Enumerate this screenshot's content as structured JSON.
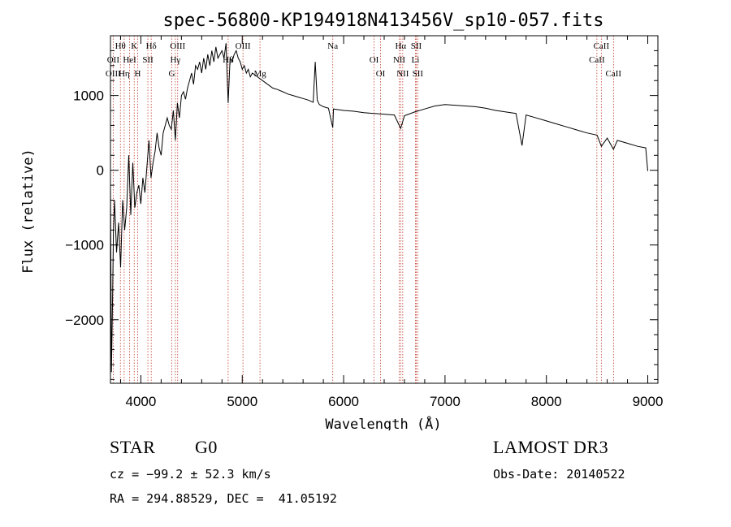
{
  "chart_data": {
    "type": "line",
    "title": "spec-56800-KP194918N413456V_sp10-057.fits",
    "xlabel": "Wavelength (Å)",
    "ylabel": "Flux (relative)",
    "xlim": [
      3700,
      9100
    ],
    "ylim": [
      -2850,
      1800
    ],
    "xticks": [
      4000,
      5000,
      6000,
      7000,
      8000,
      9000
    ],
    "xtick_labels": [
      "4000",
      "5000",
      "6000",
      "7000",
      "8000",
      "9000"
    ],
    "yticks": [
      -2000,
      -1000,
      0,
      1000
    ],
    "ytick_labels": [
      "−2000",
      "−1000",
      "0",
      "1000"
    ],
    "series": [
      {
        "name": "spectrum",
        "color": "#000000",
        "x": [
          3700,
          3710,
          3720,
          3730,
          3740,
          3760,
          3780,
          3800,
          3820,
          3840,
          3860,
          3880,
          3900,
          3920,
          3940,
          3960,
          3980,
          4000,
          4020,
          4040,
          4060,
          4080,
          4100,
          4120,
          4140,
          4160,
          4180,
          4200,
          4220,
          4240,
          4260,
          4280,
          4300,
          4320,
          4340,
          4360,
          4380,
          4400,
          4420,
          4440,
          4460,
          4480,
          4500,
          4520,
          4540,
          4560,
          4580,
          4600,
          4620,
          4640,
          4660,
          4680,
          4700,
          4720,
          4740,
          4760,
          4780,
          4800,
          4820,
          4840,
          4861,
          4880,
          4900,
          4920,
          4940,
          4960,
          4980,
          5000,
          5020,
          5040,
          5060,
          5080,
          5100,
          5150,
          5200,
          5250,
          5300,
          5350,
          5400,
          5450,
          5500,
          5550,
          5600,
          5650,
          5700,
          5720,
          5740,
          5760,
          5800,
          5850,
          5893,
          5900,
          5950,
          6000,
          6100,
          6200,
          6300,
          6400,
          6500,
          6563,
          6600,
          6700,
          6800,
          6900,
          7000,
          7100,
          7200,
          7300,
          7400,
          7500,
          7600,
          7700,
          7760,
          7800,
          7900,
          8000,
          8100,
          8200,
          8300,
          8400,
          8500,
          8542,
          8600,
          8662,
          8700,
          8800,
          8900,
          8980,
          9000
        ],
        "values": [
          -200,
          -2700,
          -1800,
          -800,
          -400,
          -1100,
          -700,
          -1300,
          -400,
          -800,
          -500,
          200,
          -600,
          100,
          -500,
          -300,
          -200,
          -450,
          -100,
          -300,
          50,
          400,
          -100,
          100,
          250,
          500,
          300,
          200,
          500,
          600,
          700,
          600,
          550,
          800,
          400,
          900,
          700,
          1000,
          1050,
          950,
          1100,
          1200,
          1300,
          1150,
          1400,
          1350,
          1450,
          1300,
          1500,
          1350,
          1550,
          1400,
          1600,
          1450,
          1650,
          1500,
          1550,
          1600,
          1500,
          1700,
          900,
          1500,
          1450,
          1550,
          1600,
          1500,
          1450,
          1350,
          1400,
          1300,
          1350,
          1250,
          1300,
          1250,
          1200,
          1150,
          1100,
          1080,
          1050,
          1020,
          1000,
          980,
          960,
          940,
          910,
          1450,
          940,
          880,
          850,
          830,
          570,
          820,
          810,
          800,
          790,
          770,
          760,
          750,
          740,
          560,
          730,
          780,
          820,
          860,
          880,
          870,
          860,
          850,
          830,
          800,
          780,
          760,
          330,
          740,
          700,
          660,
          620,
          580,
          540,
          500,
          470,
          320,
          430,
          280,
          400,
          360,
          320,
          300,
          -10
        ]
      }
    ],
    "annotations": [
      {
        "label": "Hθ",
        "x": 3798
      },
      {
        "label": "OII",
        "x": 3727
      },
      {
        "label": "OIII",
        "x": 3727
      },
      {
        "label": "K",
        "x": 3934
      },
      {
        "label": "HeI",
        "x": 3889
      },
      {
        "label": "Hη",
        "x": 3835
      },
      {
        "label": "Hδ",
        "x": 4102
      },
      {
        "label": "SII",
        "x": 4069
      },
      {
        "label": "H",
        "x": 3968
      },
      {
        "label": "OIII",
        "x": 4363
      },
      {
        "label": "Hγ",
        "x": 4340
      },
      {
        "label": "G",
        "x": 4305
      },
      {
        "label": "OIII",
        "x": 5007
      },
      {
        "label": "Hβ",
        "x": 4861
      },
      {
        "label": "Mg",
        "x": 5175
      },
      {
        "label": "Na",
        "x": 5893
      },
      {
        "label": "OI",
        "x": 6300
      },
      {
        "label": "OI",
        "x": 6364
      },
      {
        "label": "Hα",
        "x": 6563
      },
      {
        "label": "NII",
        "x": 6548
      },
      {
        "label": "NII",
        "x": 6583
      },
      {
        "label": "SII",
        "x": 6716
      },
      {
        "label": "Li",
        "x": 6708
      },
      {
        "label": "SII",
        "x": 6731
      },
      {
        "label": "CaII",
        "x": 8542
      },
      {
        "label": "CaII",
        "x": 8498
      },
      {
        "label": "CaII",
        "x": 8662
      }
    ]
  },
  "info": {
    "class": "STAR",
    "subclass": "G0",
    "survey": "LAMOST DR3",
    "cz": "cz = −99.2 ± 52.3 km/s",
    "obs_date": "Obs-Date: 20140522",
    "coords": "RA = 294.88529, DEC =  41.05192"
  }
}
